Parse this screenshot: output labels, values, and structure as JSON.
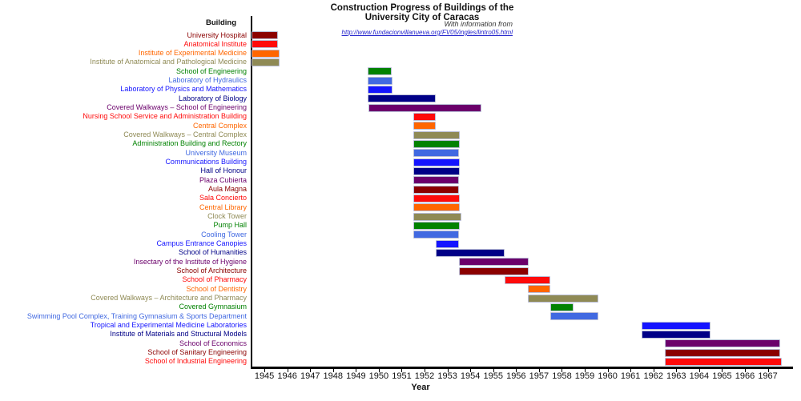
{
  "header": {
    "title_line1": "Construction Progress of Buildings of the",
    "title_line2": "University City of Caracas",
    "credit": "With information from",
    "link": "http://www.fundacionvillanueva.org/FV05/ingles/lintro05.html"
  },
  "column_header": "Building",
  "xaxis": {
    "label": "Year",
    "ticks": [
      1945,
      1946,
      1947,
      1948,
      1949,
      1950,
      1951,
      1952,
      1953,
      1954,
      1955,
      1956,
      1957,
      1958,
      1959,
      1960,
      1961,
      1962,
      1963,
      1964,
      1965,
      1966,
      1967
    ]
  },
  "colors": {
    "darkred": "#8B0000",
    "red": "#FF0A0A",
    "orange": "#FF6600",
    "darkkhaki": "#8F8A55",
    "green": "#028202",
    "royalblue": "#4169E1",
    "blue": "#1414FF",
    "navy": "#000087",
    "purple": "#6B006B"
  },
  "chart_data": {
    "type": "gantt",
    "title": "Construction Progress of Buildings of the University City of Caracas",
    "subtitle": "With information from http://www.fundacionvillanueva.org/FV05/ingles/lintro05.html",
    "xlabel": "Year",
    "ylabel": "Building",
    "xlim": [
      1944.42,
      1968.03
    ],
    "grid": false,
    "legend": "none",
    "rows": [
      {
        "label": "University Hospital",
        "color": "#8B0000",
        "start": 1944.42,
        "end": 1945.6
      },
      {
        "label": "Anatomical Institute",
        "color": "#FF0A0A",
        "start": 1944.42,
        "end": 1945.6
      },
      {
        "label": "Institute of Experimental Medicine",
        "color": "#FF6600",
        "start": 1944.42,
        "end": 1945.65
      },
      {
        "label": "Institute of Anatomical and Pathological Medicine",
        "color": "#8F8A55",
        "start": 1944.42,
        "end": 1945.65
      },
      {
        "label": "School of Engineering",
        "color": "#028202",
        "start": 1949.5,
        "end": 1950.55
      },
      {
        "label": "Laboratory of Hydraulics",
        "color": "#4169E1",
        "start": 1949.5,
        "end": 1950.6
      },
      {
        "label": "Laboratory of Physics and Mathematics",
        "color": "#1414FF",
        "start": 1949.5,
        "end": 1950.6
      },
      {
        "label": "Laboratory of Biology",
        "color": "#000087",
        "start": 1949.5,
        "end": 1952.5
      },
      {
        "label": "Covered Walkways -- School of Engineering",
        "color": "#6B006B",
        "start": 1949.55,
        "end": 1954.5
      },
      {
        "label": "Nursing School Service and Administration Building",
        "color": "#FF0A0A",
        "start": 1951.5,
        "end": 1952.5
      },
      {
        "label": "Central Complex",
        "color": "#FF6600",
        "start": 1951.5,
        "end": 1952.5
      },
      {
        "label": "Covered Walkways -- Central Complex",
        "color": "#8F8A55",
        "start": 1951.5,
        "end": 1953.55
      },
      {
        "label": "Administration Building and Rectory",
        "color": "#028202",
        "start": 1951.5,
        "end": 1953.55
      },
      {
        "label": "University Museum",
        "color": "#4169E1",
        "start": 1951.5,
        "end": 1953.5
      },
      {
        "label": "Communications Building",
        "color": "#1414FF",
        "start": 1951.5,
        "end": 1953.55
      },
      {
        "label": "Hall of Honour",
        "color": "#000087",
        "start": 1951.5,
        "end": 1953.55
      },
      {
        "label": "Plaza Cubierta",
        "color": "#6B006B",
        "start": 1951.5,
        "end": 1953.5
      },
      {
        "label": "Aula Magna",
        "color": "#8B0000",
        "start": 1951.5,
        "end": 1953.5
      },
      {
        "label": "Sala Concierto",
        "color": "#FF0A0A",
        "start": 1951.5,
        "end": 1953.55
      },
      {
        "label": "Central Library",
        "color": "#FF6600",
        "start": 1951.5,
        "end": 1953.55
      },
      {
        "label": "Clock Tower",
        "color": "#8F8A55",
        "start": 1951.5,
        "end": 1953.6
      },
      {
        "label": "Pump Hall",
        "color": "#028202",
        "start": 1951.5,
        "end": 1953.55
      },
      {
        "label": "Cooling Tower",
        "color": "#4169E1",
        "start": 1951.5,
        "end": 1953.5
      },
      {
        "label": "Campus Entrance Canopies",
        "color": "#1414FF",
        "start": 1952.5,
        "end": 1953.5
      },
      {
        "label": "School of Humanities",
        "color": "#000087",
        "start": 1952.5,
        "end": 1955.5
      },
      {
        "label": "Insectary of the Institute of Hygiene",
        "color": "#6B006B",
        "start": 1953.5,
        "end": 1956.55
      },
      {
        "label": "School of Architecture",
        "color": "#8B0000",
        "start": 1953.5,
        "end": 1956.55
      },
      {
        "label": "School of Pharmacy",
        "color": "#FF0A0A",
        "start": 1955.5,
        "end": 1957.5
      },
      {
        "label": "School of Dentistry",
        "color": "#FF6600",
        "start": 1956.5,
        "end": 1957.5
      },
      {
        "label": "Covered Walkways -- Architecture and Pharmacy",
        "color": "#8F8A55",
        "start": 1956.5,
        "end": 1959.6
      },
      {
        "label": "Covered Gymnasium",
        "color": "#028202",
        "start": 1957.5,
        "end": 1958.5
      },
      {
        "label": "Swimming Pool Complex, Training Gymnasium & Sports Department",
        "color": "#4169E1",
        "start": 1957.5,
        "end": 1959.6
      },
      {
        "label": "Tropical and Experimental Medicine Laboratories",
        "color": "#1414FF",
        "start": 1961.5,
        "end": 1964.5
      },
      {
        "label": "Institute of Materials and Structural Models",
        "color": "#000087",
        "start": 1961.5,
        "end": 1964.5
      },
      {
        "label": "School of Economics",
        "color": "#6B006B",
        "start": 1962.5,
        "end": 1967.55
      },
      {
        "label": "School of Sanitary Engineering",
        "color": "#8B0000",
        "start": 1962.5,
        "end": 1967.55
      },
      {
        "label": "School of Industrial Engineering",
        "color": "#FF0A0A",
        "start": 1962.5,
        "end": 1967.6
      }
    ]
  }
}
